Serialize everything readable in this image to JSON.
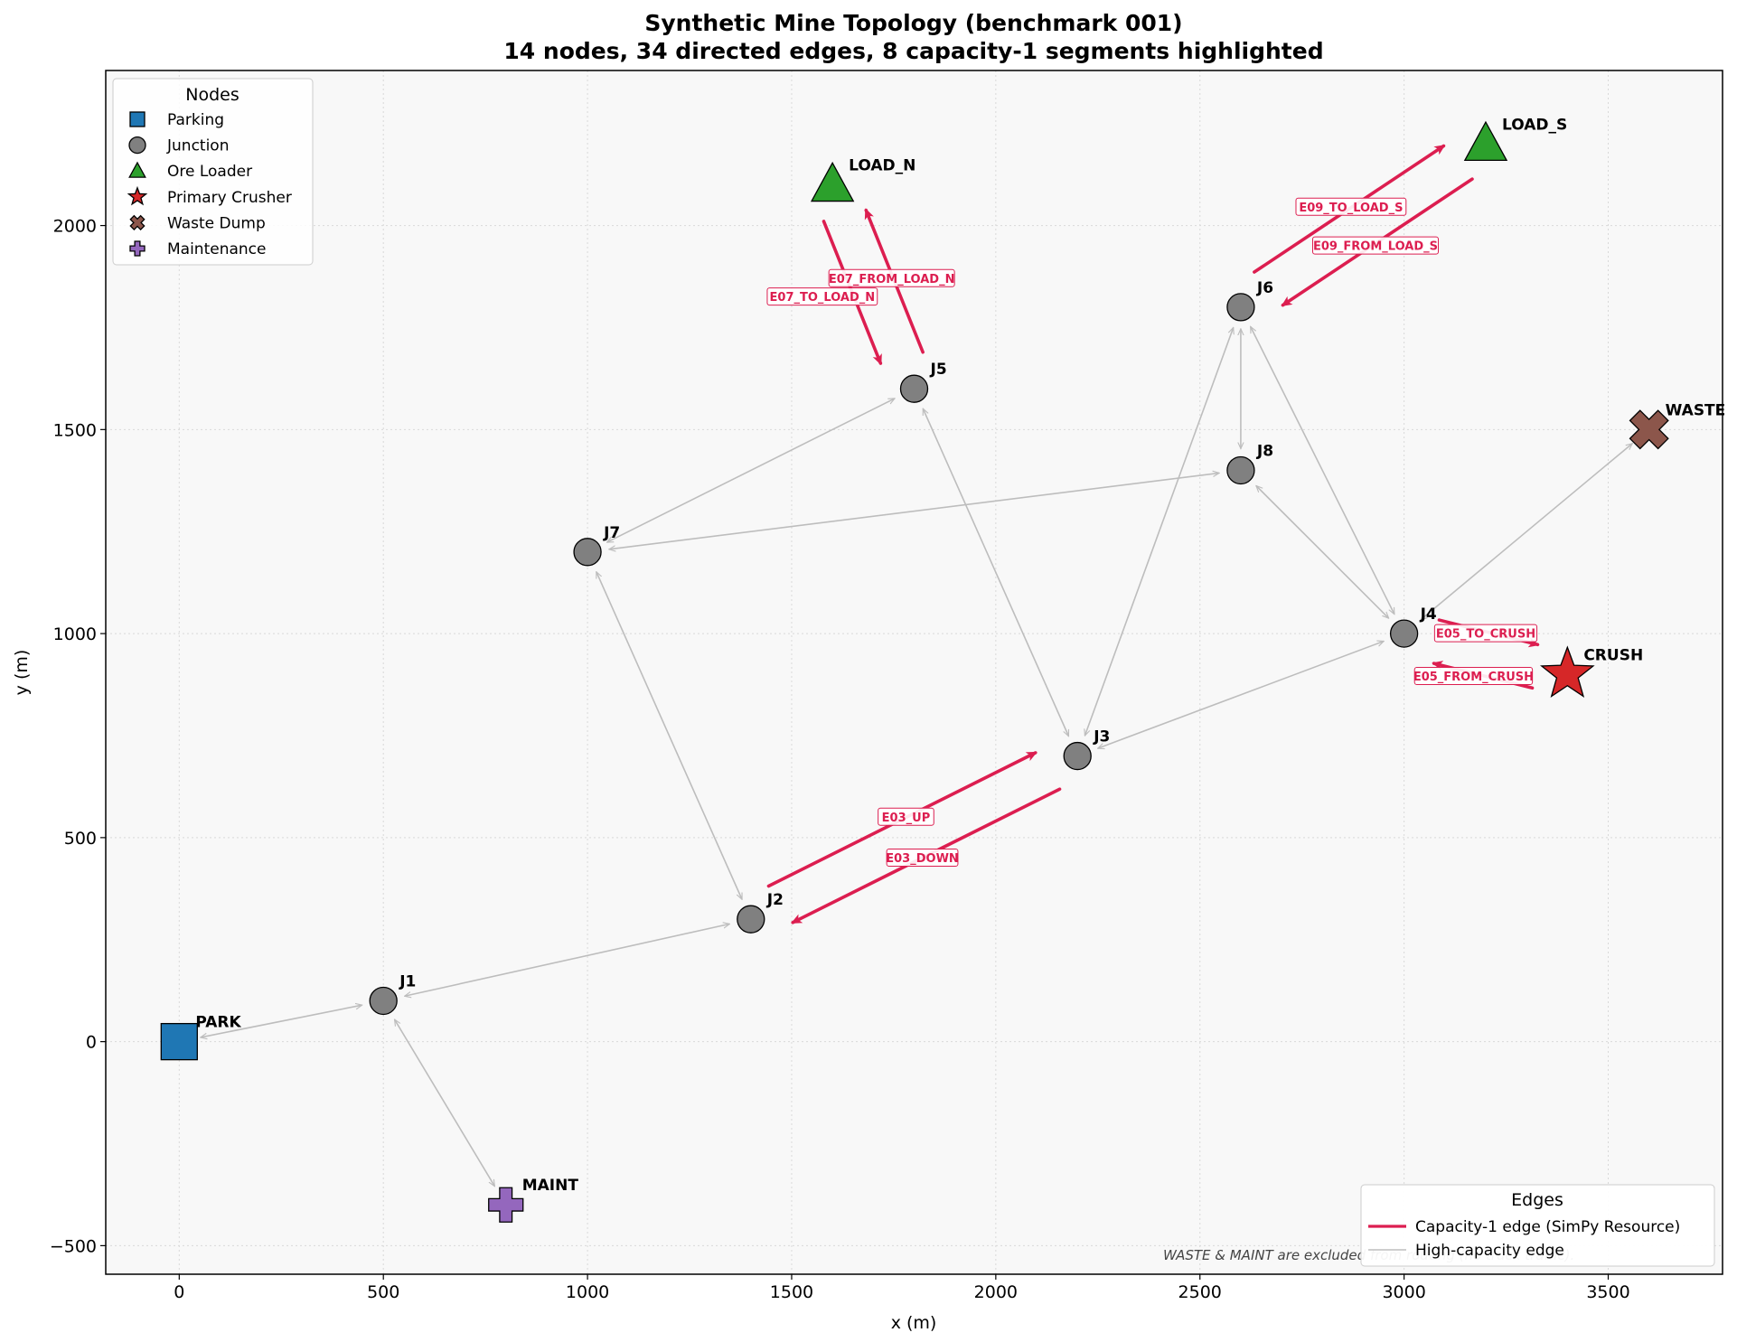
{
  "title": {
    "line1": "Synthetic Mine Topology (benchmark 001)",
    "line2": "14 nodes, 34 directed edges, 8 capacity-1 segments highlighted"
  },
  "axes": {
    "xlabel": "x (m)",
    "ylabel": "y (m)",
    "xlim": [
      -180,
      3780
    ],
    "ylim": [
      -570,
      2380
    ],
    "xticks": [
      0,
      500,
      1000,
      1500,
      2000,
      2500,
      3000,
      3500
    ],
    "yticks": [
      -500,
      0,
      500,
      1000,
      1500,
      2000
    ],
    "ytick_labels": [
      "−500",
      "0",
      "500",
      "1000",
      "1500",
      "2000"
    ],
    "grid": true,
    "background": "#f8f8f8"
  },
  "colors": {
    "capacity1": "#dc1e50",
    "highcap": "#bdbdbd",
    "parking": "#1f77b4",
    "junction": "#808080",
    "loader": "#2ca02c",
    "crusher": "#d62728",
    "waste": "#8c564b",
    "maintenance": "#9467bd"
  },
  "nodes": [
    {
      "id": "PARK",
      "type": "parking",
      "x": 0,
      "y": 0
    },
    {
      "id": "J1",
      "type": "junction",
      "x": 500,
      "y": 100
    },
    {
      "id": "J2",
      "type": "junction",
      "x": 1400,
      "y": 300
    },
    {
      "id": "J3",
      "type": "junction",
      "x": 2200,
      "y": 700
    },
    {
      "id": "J4",
      "type": "junction",
      "x": 3000,
      "y": 1000
    },
    {
      "id": "J5",
      "type": "junction",
      "x": 1800,
      "y": 1600
    },
    {
      "id": "J6",
      "type": "junction",
      "x": 2600,
      "y": 1800
    },
    {
      "id": "J7",
      "type": "junction",
      "x": 1000,
      "y": 1200
    },
    {
      "id": "J8",
      "type": "junction",
      "x": 2600,
      "y": 1400
    },
    {
      "id": "LOAD_N",
      "type": "loader",
      "x": 1600,
      "y": 2100
    },
    {
      "id": "LOAD_S",
      "type": "loader",
      "x": 3200,
      "y": 2200
    },
    {
      "id": "CRUSH",
      "type": "crusher",
      "x": 3400,
      "y": 900
    },
    {
      "id": "WASTE",
      "type": "waste",
      "x": 3600,
      "y": 1500
    },
    {
      "id": "MAINT",
      "type": "maintenance",
      "x": 800,
      "y": -400
    }
  ],
  "high_capacity_edges": [
    [
      "PARK",
      "J1"
    ],
    [
      "J1",
      "J2"
    ],
    [
      "J1",
      "MAINT"
    ],
    [
      "J2",
      "J7"
    ],
    [
      "J7",
      "J5"
    ],
    [
      "J7",
      "J8"
    ],
    [
      "J5",
      "J3"
    ],
    [
      "J3",
      "J6"
    ],
    [
      "J3",
      "J4"
    ],
    [
      "J6",
      "J8"
    ],
    [
      "J6",
      "J4"
    ],
    [
      "J8",
      "J4"
    ],
    [
      "J4",
      "WASTE"
    ]
  ],
  "capacity1_edges": [
    {
      "label": "E03_UP",
      "from": "J2",
      "to": "J3",
      "side": "left",
      "label_pos": [
        1780,
        550
      ]
    },
    {
      "label": "E03_DOWN",
      "from": "J3",
      "to": "J2",
      "side": "left",
      "label_pos": [
        1820,
        450
      ]
    },
    {
      "label": "E05_TO_CRUSH",
      "from": "J4",
      "to": "CRUSH",
      "side": "left",
      "label_pos": [
        3200,
        1000
      ]
    },
    {
      "label": "E05_FROM_CRUSH",
      "from": "CRUSH",
      "to": "J4",
      "side": "left",
      "label_pos": [
        3170,
        895
      ]
    },
    {
      "label": "E07_TO_LOAD_N",
      "from": "J5",
      "to": "LOAD_N",
      "side": "right",
      "label_pos": [
        1575,
        1825
      ]
    },
    {
      "label": "E07_FROM_LOAD_N",
      "from": "LOAD_N",
      "to": "J5",
      "side": "right",
      "label_pos": [
        1745,
        1870
      ]
    },
    {
      "label": "E09_TO_LOAD_S",
      "from": "J6",
      "to": "LOAD_S",
      "side": "left",
      "label_pos": [
        2870,
        2045
      ]
    },
    {
      "label": "E09_FROM_LOAD_S",
      "from": "LOAD_S",
      "to": "J6",
      "side": "left",
      "label_pos": [
        2930,
        1950
      ]
    }
  ],
  "legend_nodes": {
    "title": "Nodes",
    "items": [
      {
        "label": "Parking",
        "marker": "square",
        "color_key": "parking"
      },
      {
        "label": "Junction",
        "marker": "circle",
        "color_key": "junction"
      },
      {
        "label": "Ore Loader",
        "marker": "triangle",
        "color_key": "loader"
      },
      {
        "label": "Primary Crusher",
        "marker": "star",
        "color_key": "crusher"
      },
      {
        "label": "Waste Dump",
        "marker": "xcross",
        "color_key": "waste"
      },
      {
        "label": "Maintenance",
        "marker": "plus",
        "color_key": "maintenance"
      }
    ]
  },
  "legend_edges": {
    "title": "Edges",
    "items": [
      {
        "label": "Capacity-1 edge (SimPy Resource)",
        "color_key": "capacity1",
        "width": 3.2
      },
      {
        "label": "High-capacity edge",
        "color_key": "highcap",
        "width": 1.5
      }
    ]
  },
  "footnote": "WASTE & MAINT are excluded from routing (no truck traffic)."
}
